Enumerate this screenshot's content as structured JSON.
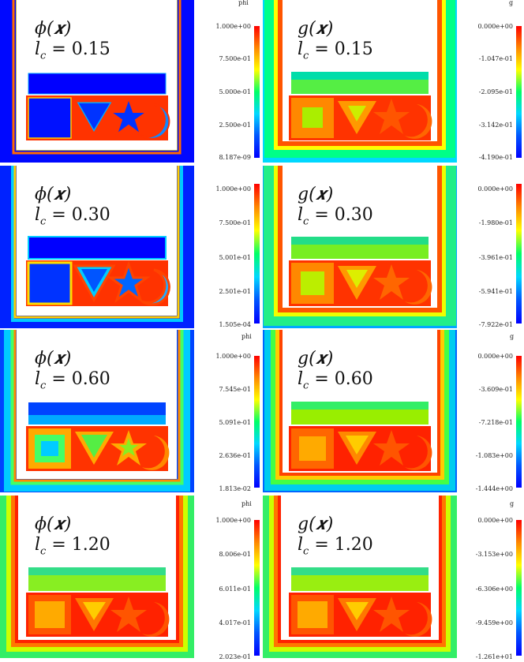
{
  "colors": {
    "phi_gradient": [
      "#ff0000",
      "#ff8800",
      "#ffff00",
      "#00ff66",
      "#00d8ff",
      "#0055ff",
      "#0000ff"
    ],
    "g_gradient": [
      "#ff0000",
      "#ff8800",
      "#ffff00",
      "#00ff66",
      "#00d8ff",
      "#0055ff",
      "#0000ff"
    ]
  },
  "rows": [
    {
      "phi": {
        "var": "ϕ(𝒙)",
        "lc": "l",
        "sub": "c",
        "eq": " = 0.15",
        "bar_title": "phi",
        "ticks": [
          "1.000e+00",
          "7.500e-01",
          "5.000e-01",
          "2.500e-01",
          "8.187e-09"
        ]
      },
      "g": {
        "var": "g(𝒙)",
        "lc": "l",
        "sub": "c",
        "eq": " = 0.15",
        "bar_title": "g",
        "ticks": [
          "0.000e+00",
          "-1.047e-01",
          "-2.095e-01",
          "-3.142e-01",
          "-4.190e-01"
        ]
      }
    },
    {
      "phi": {
        "var": "ϕ(𝒙)",
        "lc": "l",
        "sub": "c",
        "eq": " = 0.30",
        "bar_title": "phi",
        "ticks": [
          "1.000e+00",
          "7.500e-01",
          "5.001e-01",
          "2.501e-01",
          "1.505e-04"
        ]
      },
      "g": {
        "var": "g(𝒙)",
        "lc": "l",
        "sub": "c",
        "eq": " = 0.30",
        "bar_title": "g",
        "ticks": [
          "0.000e+00",
          "-1.980e-01",
          "-3.961e-01",
          "-5.941e-01",
          "-7.922e-01"
        ]
      }
    },
    {
      "phi": {
        "var": "ϕ(𝒙)",
        "lc": "l",
        "sub": "c",
        "eq": " = 0.60",
        "bar_title": "phi",
        "ticks": [
          "1.000e+00",
          "7.545e-01",
          "5.091e-01",
          "2.636e-01",
          "1.813e-02"
        ]
      },
      "g": {
        "var": "g(𝒙)",
        "lc": "l",
        "sub": "c",
        "eq": " = 0.60",
        "bar_title": "g",
        "ticks": [
          "0.000e+00",
          "-3.609e-01",
          "-7.218e-01",
          "-1.083e+00",
          "-1.444e+00"
        ]
      }
    },
    {
      "phi": {
        "var": "ϕ(𝒙)",
        "lc": "l",
        "sub": "c",
        "eq": " = 1.20",
        "bar_title": "phi",
        "ticks": [
          "1.000e+00",
          "8.006e-01",
          "6.011e-01",
          "4.017e-01",
          "2.023e-01"
        ]
      },
      "g": {
        "var": "g(𝒙)",
        "lc": "l",
        "sub": "c",
        "eq": " = 1.20",
        "bar_title": "g",
        "ticks": [
          "0.000e+00",
          "-3.153e+00",
          "-6.306e+00",
          "-9.459e+00",
          "-1.261e+01"
        ]
      }
    }
  ]
}
